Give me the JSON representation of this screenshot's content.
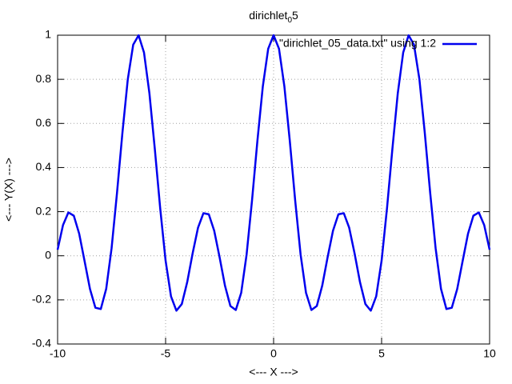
{
  "chart_data": {
    "type": "line",
    "title": {
      "main": "dirichlet",
      "subscript": "0",
      "after": "5"
    },
    "x_label": "<--- X --->",
    "y_label": "<--- Y(X) --->",
    "x": [
      -10,
      -9.75,
      -9.5,
      -9.25,
      -9,
      -8.75,
      -8.5,
      -8.25,
      -8,
      -7.75,
      -7.5,
      -7.25,
      -7,
      -6.75,
      -6.5,
      -6.25,
      -6,
      -5.75,
      -5.5,
      -5.25,
      -5,
      -4.75,
      -4.5,
      -4.25,
      -4,
      -3.75,
      -3.5,
      -3.25,
      -3,
      -2.75,
      -2.5,
      -2.25,
      -2,
      -1.75,
      -1.5,
      -1.25,
      -1,
      -0.75,
      -0.5,
      -0.25,
      0,
      0.25,
      0.5,
      0.75,
      1,
      1.25,
      1.5,
      1.75,
      2,
      2.25,
      2.5,
      2.75,
      3,
      3.25,
      3.5,
      3.75,
      4,
      4.25,
      4.5,
      4.75,
      5,
      5.25,
      5.5,
      5.75,
      6,
      6.25,
      6.5,
      6.75,
      7,
      7.25,
      7.5,
      7.75,
      8,
      8.25,
      8.5,
      8.75,
      9,
      9.25,
      9.5,
      9.75,
      10
    ],
    "series": [
      {
        "name": "\"dirichlet_05_data.txt\" using 1:2",
        "color": "#0000ee",
        "values": [
          0.0276,
          0.139,
          0.1966,
          0.1817,
          0.0998,
          -0.0246,
          -0.1509,
          -0.2356,
          -0.2413,
          -0.1499,
          0.0348,
          0.2847,
          0.5565,
          0.8003,
          0.9568,
          0.9995,
          0.9216,
          0.7374,
          0.4851,
          0.2151,
          -0.0222,
          -0.1841,
          -0.2489,
          -0.219,
          -0.1197,
          0.0104,
          0.127,
          0.193,
          0.1881,
          0.1137,
          -0.007,
          -0.136,
          -0.2279,
          -0.2458,
          -0.1677,
          0.0056,
          0.2497,
          0.5209,
          0.7672,
          0.9386,
          1,
          0.9386,
          0.7672,
          0.5209,
          0.2497,
          0.0056,
          -0.1677,
          -0.2458,
          -0.2279,
          -0.136,
          -0.007,
          0.1137,
          0.1881,
          0.193,
          0.127,
          0.0104,
          -0.1197,
          -0.219,
          -0.2489,
          -0.1841,
          -0.0222,
          0.2151,
          0.4851,
          0.7374,
          0.9216,
          0.9995,
          0.9568,
          0.8003,
          0.5565,
          0.2847,
          0.0348,
          -0.1499,
          -0.2413,
          -0.2356,
          -0.1509,
          -0.0246,
          0.0998,
          0.1817,
          0.1966,
          0.139,
          0.0276
        ]
      }
    ],
    "xlim": [
      -10,
      10
    ],
    "xticks": [
      -10,
      -5,
      0,
      5,
      10
    ],
    "ylim": [
      -0.4,
      1
    ],
    "yticks": [
      -0.4,
      -0.2,
      0,
      0.2,
      0.4,
      0.6,
      0.8,
      1
    ],
    "grid": true,
    "legend": "top-right"
  }
}
